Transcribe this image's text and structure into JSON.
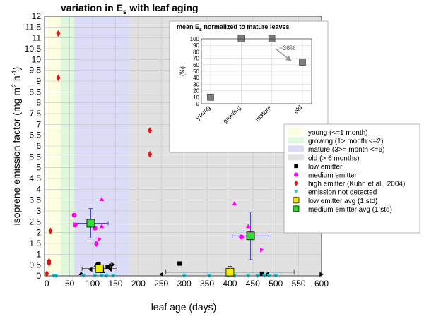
{
  "chart_data": [
    {
      "type": "scatter",
      "title_main": "variation in E",
      "title_sub": "s",
      "title_tail": " with leaf aging",
      "xlabel": "leaf age (days)",
      "ylabel_main": "isoprene emission factor (mg m",
      "ylabel_sup1": "2",
      "ylabel_mid": " h",
      "ylabel_sup2": "-1",
      "ylabel_tail": ")",
      "xlim": [
        -5,
        600
      ],
      "ylim": [
        0,
        12
      ],
      "x_ticks": [
        "0",
        "50",
        "100",
        "150",
        "200",
        "250",
        "300",
        "350",
        "400",
        "450",
        "500",
        "550",
        "600"
      ],
      "y_ticks": [
        "0",
        "0.5",
        "1",
        "1.5",
        "2",
        "2.5",
        "3",
        "3.5",
        "4",
        "4.5",
        "5",
        "5.5",
        "6",
        "6.5",
        "7",
        "7.5",
        "8",
        "8.5",
        "9",
        "9.5",
        "10",
        "10.5",
        "11",
        "11.5",
        "12"
      ],
      "grid": true,
      "legend_position": "right",
      "stages": [
        {
          "name": "young (<=1 month)",
          "x0": 0,
          "x1": 30,
          "color": "#fdfde0"
        },
        {
          "name": "growing (1> month <=2)",
          "x0": 30,
          "x1": 60,
          "color": "#dff7da"
        },
        {
          "name": "mature (3>= month <=6)",
          "x0": 60,
          "x1": 180,
          "color": "#dcdcf7"
        },
        {
          "name": "old (> 6 months)",
          "x0": 180,
          "x1": 600,
          "color": "#e1e1e1"
        }
      ],
      "series": [
        {
          "name": "low emitter",
          "marker": "square",
          "color": "#000000",
          "points": [
            [
              113,
              0.52
            ],
            [
              120,
              0.32
            ],
            [
              133,
              0.4
            ],
            [
              290,
              0.57
            ],
            [
              470,
              0.1
            ]
          ]
        },
        {
          "name": "medium emitter",
          "marker": "circle",
          "color": "#ff00ff",
          "points": [
            [
              60,
              2.8
            ],
            [
              62,
              2.35
            ],
            [
              105,
              2.2
            ],
            [
              425,
              1.8
            ]
          ]
        },
        {
          "name": "high emitter (Kuhn et al., 2004)",
          "marker": "diamond",
          "color": "#ee1111",
          "points": [
            [
              0,
              0.1
            ],
            [
              5,
              0.58
            ],
            [
              5,
              0.68
            ],
            [
              8,
              2.08
            ],
            [
              25,
              11.2
            ],
            [
              25,
              9.15
            ],
            [
              225,
              6.72
            ],
            [
              225,
              5.62
            ]
          ]
        },
        {
          "name": "emission not detected",
          "marker": "triangle-down",
          "color": "#11cfe3",
          "points": [
            [
              15,
              0
            ],
            [
              20,
              0
            ],
            [
              80,
              0
            ],
            [
              105,
              0
            ],
            [
              120,
              0
            ],
            [
              130,
              0
            ],
            [
              145,
              0
            ],
            [
              300,
              0
            ],
            [
              355,
              0
            ],
            [
              395,
              0
            ],
            [
              410,
              0
            ],
            [
              440,
              0
            ],
            [
              460,
              0
            ],
            [
              475,
              0
            ],
            [
              485,
              0
            ],
            [
              500,
              0
            ]
          ]
        },
        {
          "name": "low emitter avg (1 std)",
          "marker": "avg-square",
          "color": "#f2ec00",
          "points": [
            [
              115,
              0.33,
              38,
              0.1
            ],
            [
              400,
              0.17,
              140,
              0.27
            ]
          ]
        },
        {
          "name": "medium emitter avg (1 std)",
          "marker": "avg-square",
          "color": "#33dd33",
          "points": [
            [
              96,
              2.43,
              38,
              0.68
            ],
            [
              445,
              1.85,
              40,
              1.1
            ]
          ]
        }
      ],
      "extra_markers": [
        {
          "marker": "triangle-up",
          "color": "#ff00ff",
          "points": [
            [
              120,
              3.55
            ],
            [
              120,
              2.3
            ],
            [
              410,
              3.35
            ],
            [
              440,
              2.3
            ],
            [
              445,
              2.0
            ]
          ]
        },
        {
          "marker": "triangle-right",
          "color": "#ff00ff",
          "points": [
            [
              115,
              1.7
            ],
            [
              470,
              1.2
            ]
          ]
        },
        {
          "marker": "diamond",
          "color": "#ff00ff",
          "points": [
            [
              108,
              1.48
            ]
          ]
        },
        {
          "marker": "triangle-up",
          "color": "#000000",
          "points": [
            [
              75,
              0.12
            ],
            [
              108,
              0.52
            ],
            [
              122,
              0.22
            ],
            [
              138,
              0.52
            ]
          ]
        },
        {
          "marker": "triangle-right",
          "color": "#000000",
          "points": [
            [
              145,
              0.52
            ],
            [
              600,
              0.07
            ]
          ]
        },
        {
          "marker": "triangle-left",
          "color": "#000000",
          "points": [
            [
              95,
              0.3
            ],
            [
              250,
              0.07
            ],
            [
              138,
              0.3
            ],
            [
              480,
              0.07
            ]
          ]
        }
      ]
    },
    {
      "type": "scatter",
      "title_main": "mean E",
      "title_sub": "s",
      "title_tail": " normalized to mature leaves",
      "ylabel": "(%)",
      "categories": [
        "young",
        "growing",
        "mature",
        "old"
      ],
      "values": [
        10,
        100,
        100,
        64
      ],
      "ylim": [
        0,
        100
      ],
      "y_ticks": [
        "0",
        "10",
        "20",
        "30",
        "40",
        "50",
        "60",
        "70",
        "80",
        "90",
        "100"
      ],
      "annotation": "~36%",
      "grid": true
    }
  ]
}
